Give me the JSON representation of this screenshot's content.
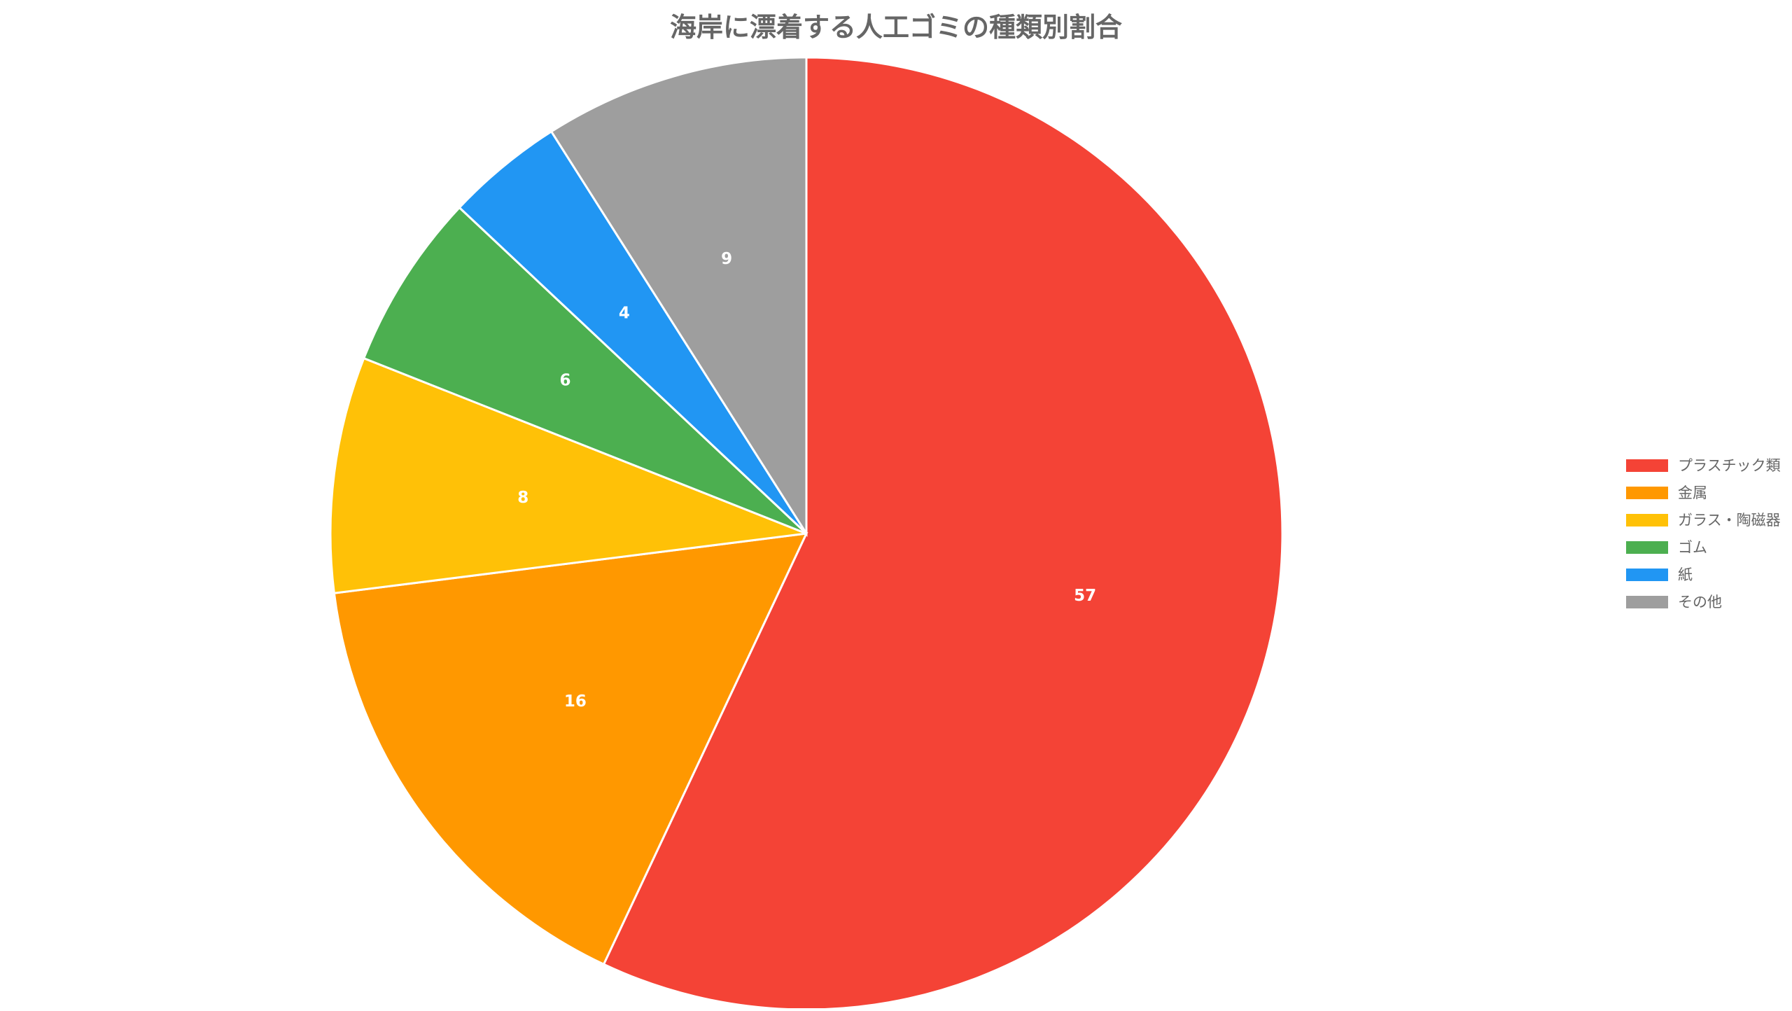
{
  "chart_data": {
    "type": "pie",
    "title": "海岸に漂着する人工ゴミの種類別割合",
    "categories": [
      "プラスチック類",
      "金属",
      "ガラス・陶磁器",
      "ゴム",
      "紙",
      "その他"
    ],
    "values": [
      57,
      16,
      8,
      6,
      4,
      9
    ],
    "colors": [
      "#F44336",
      "#FF9800",
      "#FFC107",
      "#4CAF50",
      "#2196F3",
      "#9E9E9E"
    ],
    "data_labels": [
      "57",
      "16",
      "8",
      "6",
      "4",
      "9"
    ],
    "start_angle": "top (12 o'clock)",
    "direction": "clockwise",
    "legend": "right",
    "slice_border_color": "#ffffff"
  }
}
